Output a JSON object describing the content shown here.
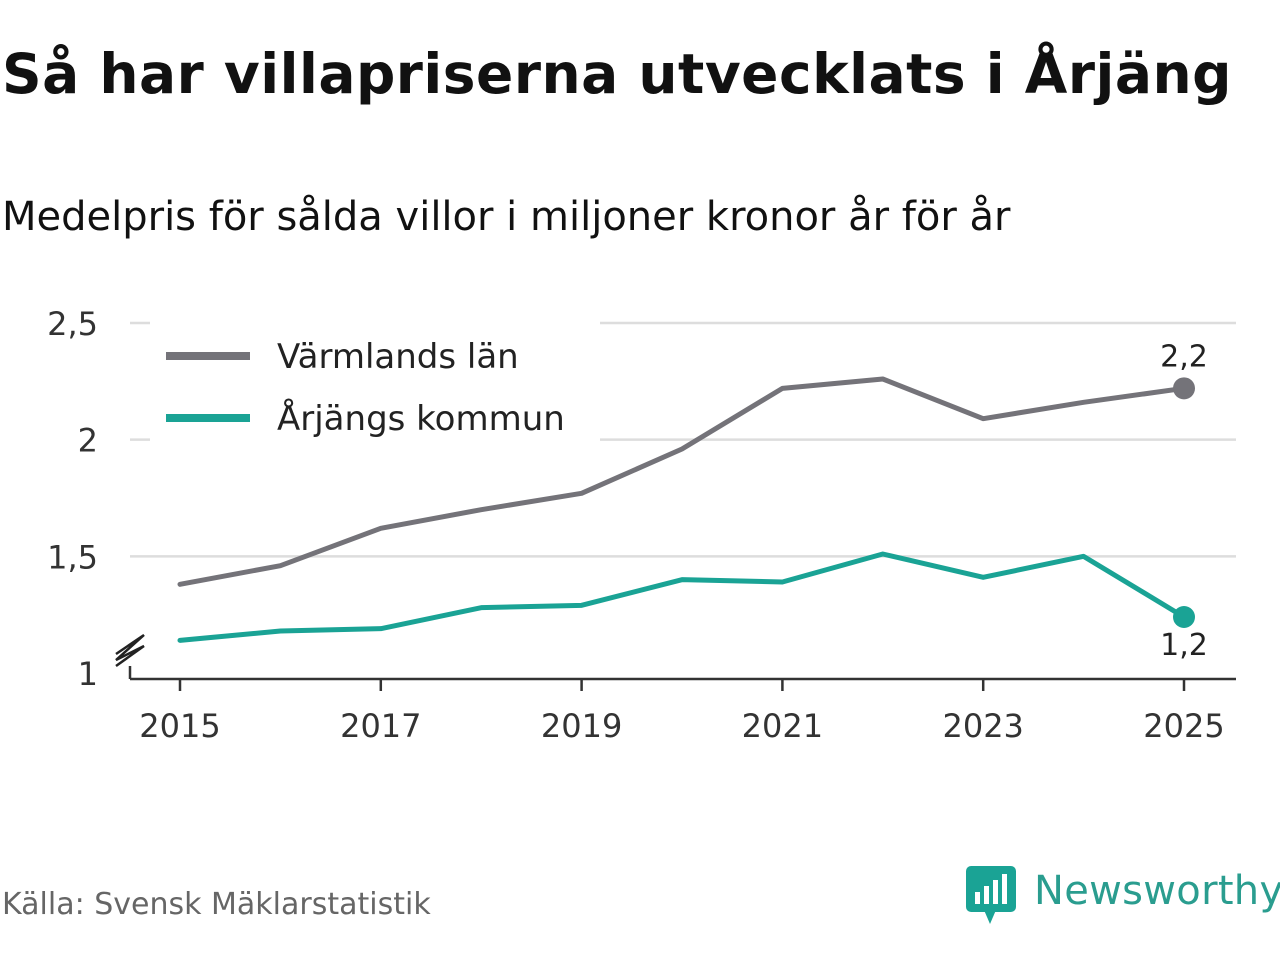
{
  "title": "Så har villapriserna utvecklats i Årjäng",
  "subtitle": "Medelpris för sålda villor i miljoner kronor år för år",
  "source": "Källa: Svensk Mäklarstatistik",
  "brand": {
    "name": "Newsworthy",
    "icon": "newsworthy-logo-icon",
    "color": "#1aa395"
  },
  "chart_data": {
    "type": "line",
    "title": "Så har villapriserna utvecklats i Årjäng",
    "subtitle": "Medelpris för sålda villor i miljoner kronor år för år",
    "xlabel": "",
    "ylabel": "",
    "x": [
      2015,
      2016,
      2017,
      2018,
      2019,
      2020,
      2021,
      2022,
      2023,
      2024,
      2025
    ],
    "xticks": [
      2015,
      2017,
      2019,
      2021,
      2023,
      2025
    ],
    "xtick_labels": [
      "2015",
      "2017",
      "2019",
      "2021",
      "2023",
      "2025"
    ],
    "ylim": [
      1,
      2.5
    ],
    "yticks": [
      1,
      1.5,
      2,
      2.5
    ],
    "ytick_labels": [
      "1",
      "1,5",
      "2",
      "2,5"
    ],
    "axis_break": true,
    "grid": true,
    "legend_position": "top-left",
    "series": [
      {
        "name": "Värmlands län",
        "color": "#747379",
        "values": [
          1.38,
          1.46,
          1.62,
          1.7,
          1.77,
          1.96,
          2.22,
          2.26,
          2.09,
          2.16,
          2.22
        ],
        "end_label": "2,2"
      },
      {
        "name": "Årjängs kommun",
        "color": "#1aa395",
        "values": [
          1.14,
          1.18,
          1.19,
          1.28,
          1.29,
          1.4,
          1.39,
          1.51,
          1.41,
          1.5,
          1.24
        ],
        "end_label": "1,2"
      }
    ]
  }
}
